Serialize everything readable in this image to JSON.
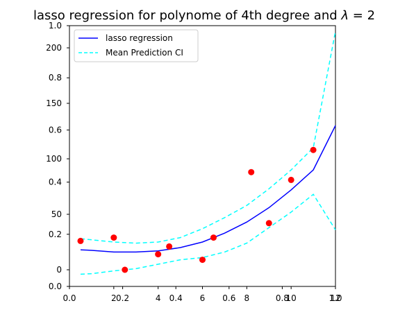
{
  "chart_data": {
    "type": "line",
    "title": "lasso regression for polynome of 4th degree and λ = 2",
    "title_prefix": "lasso regression for polynome of 4th degree and ",
    "title_lambda": "λ",
    "title_suffix": " = 2",
    "legend": {
      "placement": "top-left",
      "entries": [
        {
          "label": "lasso regression",
          "color": "#0000ff",
          "style": "solid"
        },
        {
          "label": "Mean Prediction CI",
          "color": "#00ffff",
          "style": "dashed"
        }
      ]
    },
    "grid": false,
    "outer_axes": {
      "xlim": [
        0,
        1
      ],
      "ylim": [
        0,
        1
      ],
      "xticks": [
        "0.0",
        "0.2",
        "0.4",
        "0.6",
        "0.8",
        "1.0"
      ],
      "yticks": [
        "0.0",
        "0.2",
        "0.4",
        "0.6",
        "0.8",
        "1.0"
      ]
    },
    "inner_axes": {
      "xlim": [
        0,
        12
      ],
      "ylim": [
        -15,
        220
      ],
      "xticks": [
        "2",
        "4",
        "6",
        "8",
        "10",
        "12"
      ],
      "yticks": [
        "0",
        "50",
        "100",
        "150",
        "200"
      ]
    },
    "series": [
      {
        "name": "lasso regression",
        "color": "#0000ff",
        "x": [
          0.5,
          1,
          2,
          3,
          4,
          5,
          6,
          7,
          8,
          9,
          10,
          11,
          12
        ],
        "y": [
          18,
          17.5,
          16,
          16,
          17,
          20,
          25,
          33,
          43,
          56,
          72,
          90,
          130
        ]
      },
      {
        "name": "Mean Prediction CI",
        "color": "#00ffff",
        "x": [
          0.5,
          1,
          2,
          3,
          4,
          5,
          6,
          7,
          8,
          9,
          10,
          11,
          12
        ],
        "y": [
          28,
          27,
          25,
          24,
          25,
          29,
          37,
          47,
          58,
          73,
          90,
          110,
          215
        ]
      },
      {
        "name": "Mean Prediction CI lower",
        "color": "#00ffff",
        "x": [
          0.5,
          1,
          2,
          3,
          4,
          5,
          6,
          7,
          8,
          9,
          10,
          11,
          12
        ],
        "y": [
          -4,
          -3.5,
          -1,
          1,
          5,
          9,
          11,
          16,
          24,
          38,
          52,
          68,
          36
        ]
      }
    ],
    "points": {
      "color": "#ff0000",
      "x": [
        0.5,
        2,
        2.5,
        4,
        4.5,
        6,
        6.5,
        8.2,
        9,
        10,
        11
      ],
      "y": [
        26,
        29,
        0,
        14,
        21,
        9,
        29,
        88,
        42,
        81,
        108
      ]
    }
  }
}
